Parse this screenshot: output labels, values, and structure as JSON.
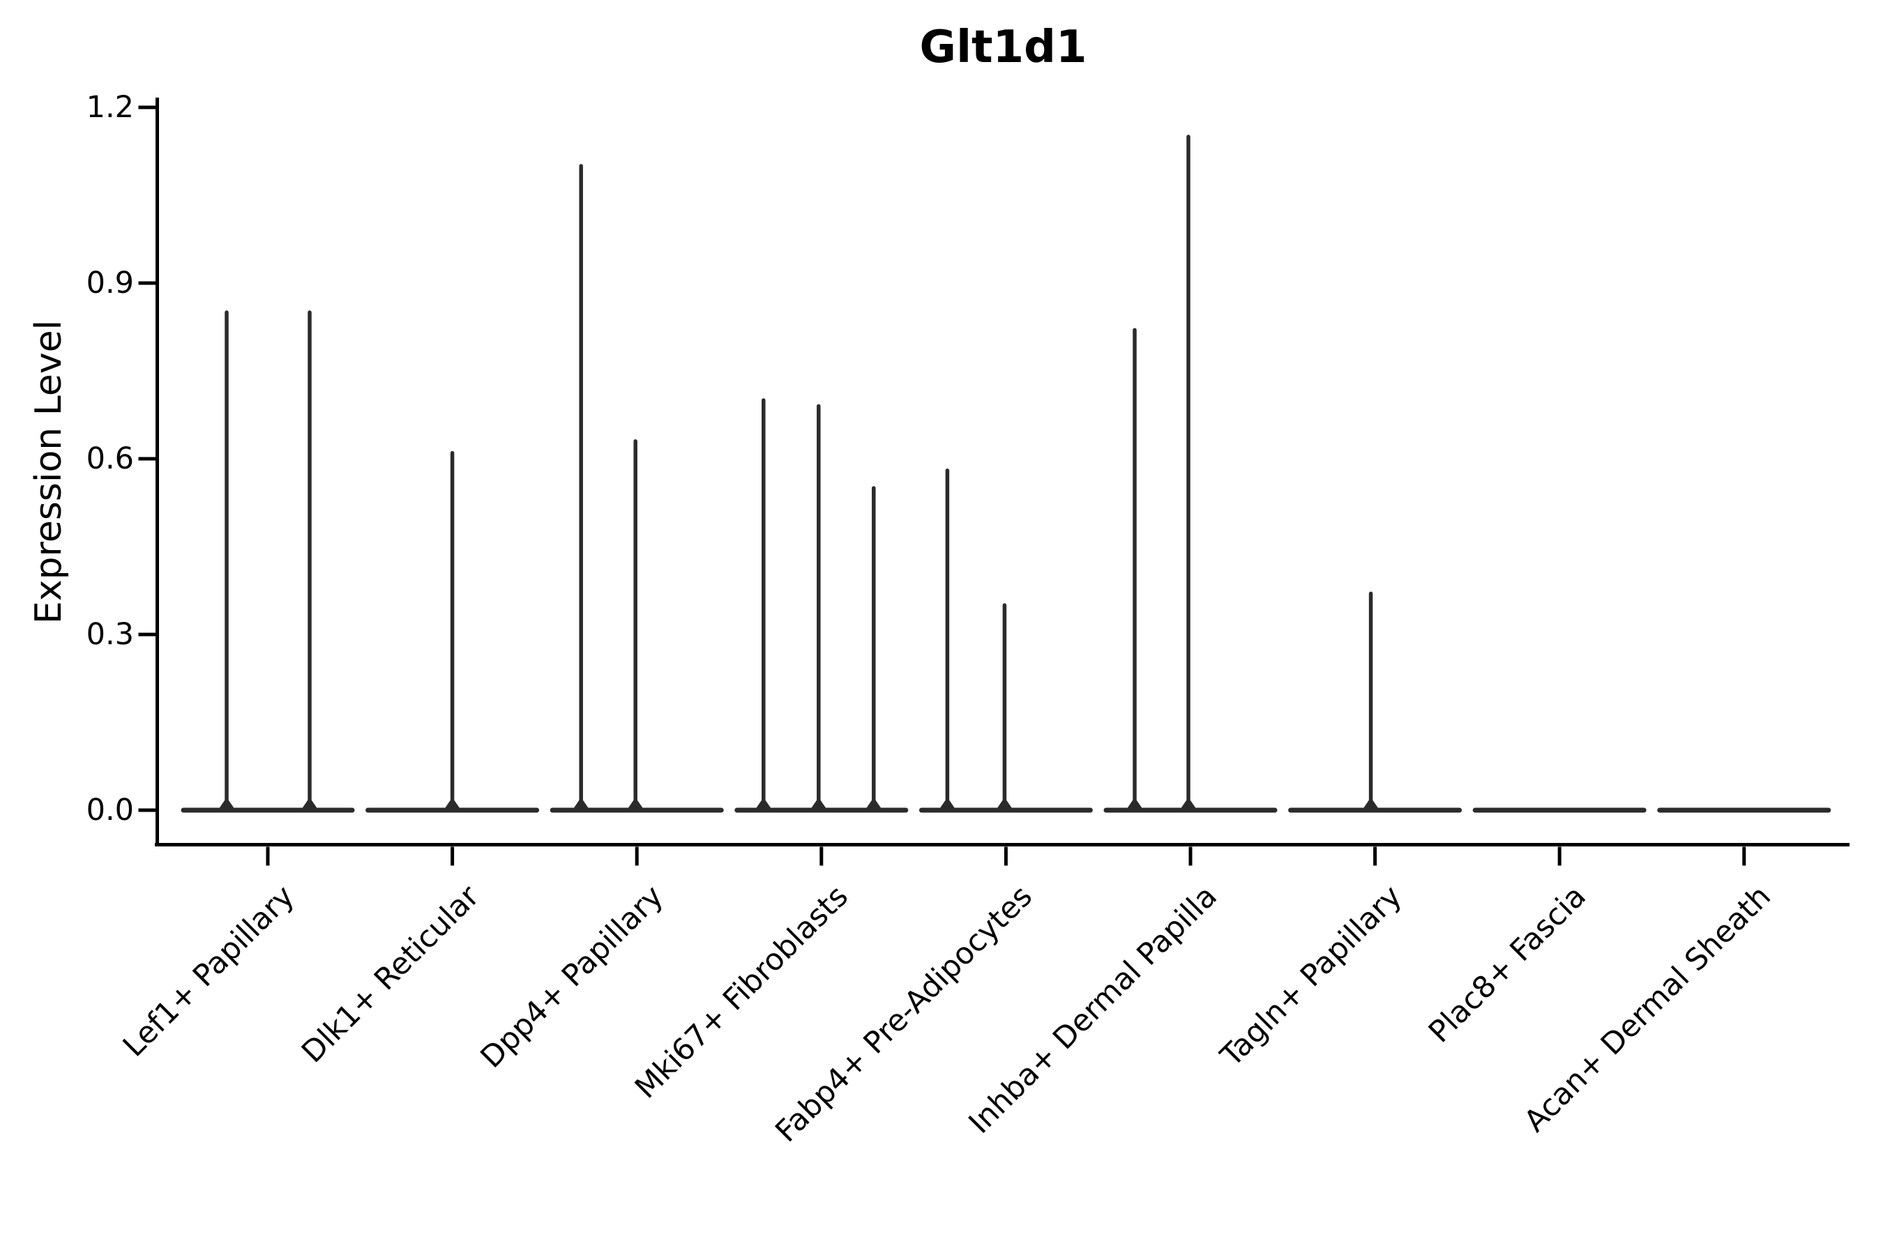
{
  "figure": {
    "background_color": "#ffffff",
    "axis_color": "#000000",
    "text_color": "#000000",
    "violin_color": "#2b2b2b"
  },
  "chart_data": {
    "type": "violin",
    "title": "Glt1d1",
    "xlabel": "",
    "ylabel": "Expression Level",
    "ylim": [
      -0.06,
      1.26
    ],
    "yticks": [
      0.0,
      0.3,
      0.6,
      0.9,
      1.2
    ],
    "ytick_labels": [
      "0.0",
      "0.3",
      "0.6",
      "0.9",
      "1.2"
    ],
    "grid": false,
    "legend": "none",
    "categories": [
      "Lef1+ Papillary",
      "Dlk1+ Reticular",
      "Dpp4+ Papillary",
      "Mki67+ Fibroblasts",
      "Fabp4+ Pre-Adipocytes",
      "Inhba+ Dermal Papilla",
      "Tagln+ Papillary",
      "Plac8+ Fascia",
      "Acan+ Dermal Sheath"
    ],
    "violins": [
      {
        "category": "Lef1+ Papillary",
        "baseline_value": 0.0,
        "spikes": [
          {
            "value": 0.85,
            "dx": -59
          },
          {
            "value": 0.85,
            "dx": 60
          }
        ]
      },
      {
        "category": "Dlk1+ Reticular",
        "baseline_value": 0.0,
        "spikes": [
          {
            "value": 0.61,
            "dx": 0
          }
        ]
      },
      {
        "category": "Dpp4+ Papillary",
        "baseline_value": 0.0,
        "spikes": [
          {
            "value": 1.1,
            "dx": -80
          },
          {
            "value": 0.63,
            "dx": -2
          }
        ]
      },
      {
        "category": "Mki67+ Fibroblasts",
        "baseline_value": 0.0,
        "spikes": [
          {
            "value": 0.7,
            "dx": -83
          },
          {
            "value": 0.69,
            "dx": -4
          },
          {
            "value": 0.55,
            "dx": 75
          }
        ]
      },
      {
        "category": "Fabp4+ Pre-Adipocytes",
        "baseline_value": 0.0,
        "spikes": [
          {
            "value": 0.58,
            "dx": -84
          },
          {
            "value": 0.35,
            "dx": -2
          }
        ]
      },
      {
        "category": "Inhba+ Dermal Papilla",
        "baseline_value": 0.0,
        "spikes": [
          {
            "value": 0.82,
            "dx": -80
          },
          {
            "value": 1.15,
            "dx": -3
          }
        ]
      },
      {
        "category": "Tagln+ Papillary",
        "baseline_value": 0.0,
        "spikes": [
          {
            "value": 0.37,
            "dx": -6
          }
        ]
      },
      {
        "category": "Plac8+ Fascia",
        "baseline_value": 0.0,
        "spikes": []
      },
      {
        "category": "Acan+ Dermal Sheath",
        "baseline_value": 0.0,
        "spikes": []
      }
    ]
  }
}
